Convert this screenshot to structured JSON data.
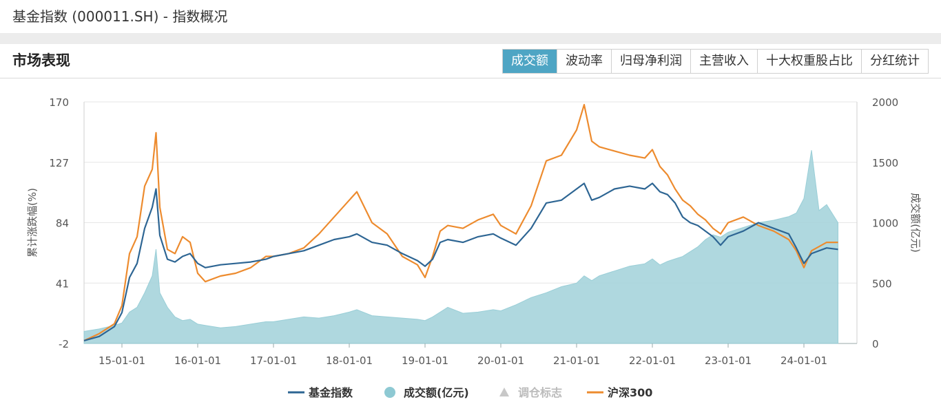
{
  "header": {
    "title": "基金指数 (000011.SH) - 指数概况"
  },
  "section": {
    "title": "市场表现",
    "tabs": [
      {
        "label": "成交额",
        "active": true
      },
      {
        "label": "波动率",
        "active": false
      },
      {
        "label": "归母净利润",
        "active": false
      },
      {
        "label": "主营收入",
        "active": false
      },
      {
        "label": "十大权重股占比",
        "active": false
      },
      {
        "label": "分红统计",
        "active": false
      }
    ]
  },
  "colors": {
    "fund": "#2d6593",
    "hs300": "#ed8b2e",
    "volume": "#a7d4dc",
    "volume_edge": "#8ec9d3",
    "marker": "#c8c8c8",
    "accent": "#4ea5c4"
  },
  "chart_data": {
    "type": "line",
    "ylabel_left": "累计涨跌幅(%)",
    "ylabel_right": "成交额(亿元)",
    "y_left_ticks": [
      -2,
      41,
      84,
      127,
      170
    ],
    "y_left_range": [
      -2,
      170
    ],
    "y_right_ticks": [
      0,
      500,
      1000,
      1500,
      2000
    ],
    "y_right_range": [
      0,
      2000
    ],
    "x_range": [
      2014.5,
      2024.7
    ],
    "x_ticks": [
      {
        "x": 2015,
        "label": "15-01-01"
      },
      {
        "x": 2016,
        "label": "16-01-01"
      },
      {
        "x": 2017,
        "label": "17-01-01"
      },
      {
        "x": 2018,
        "label": "18-01-01"
      },
      {
        "x": 2019,
        "label": "19-01-01"
      },
      {
        "x": 2020,
        "label": "20-01-01"
      },
      {
        "x": 2021,
        "label": "21-01-01"
      },
      {
        "x": 2022,
        "label": "22-01-01"
      },
      {
        "x": 2023,
        "label": "23-01-01"
      },
      {
        "x": 2024,
        "label": "24-01-01"
      }
    ],
    "legend": [
      {
        "name": "基金指数",
        "kind": "line",
        "color": "#2d6593",
        "enabled": true
      },
      {
        "name": "成交额(亿元)",
        "kind": "dot",
        "color": "#8ec9d3",
        "enabled": true
      },
      {
        "name": "调仓标志",
        "kind": "triangle",
        "color": "#c8c8c8",
        "enabled": false
      },
      {
        "name": "沪深300",
        "kind": "line",
        "color": "#ed8b2e",
        "enabled": true
      }
    ],
    "series": [
      {
        "name": "基金指数",
        "axis": "left",
        "points": [
          [
            2014.5,
            0
          ],
          [
            2014.7,
            3
          ],
          [
            2014.9,
            10
          ],
          [
            2015.0,
            20
          ],
          [
            2015.1,
            45
          ],
          [
            2015.2,
            55
          ],
          [
            2015.3,
            80
          ],
          [
            2015.4,
            95
          ],
          [
            2015.45,
            108
          ],
          [
            2015.5,
            75
          ],
          [
            2015.6,
            58
          ],
          [
            2015.7,
            56
          ],
          [
            2015.8,
            60
          ],
          [
            2015.9,
            62
          ],
          [
            2016.0,
            55
          ],
          [
            2016.1,
            52
          ],
          [
            2016.3,
            54
          ],
          [
            2016.5,
            55
          ],
          [
            2016.7,
            56
          ],
          [
            2016.9,
            58
          ],
          [
            2017.0,
            60
          ],
          [
            2017.2,
            62
          ],
          [
            2017.4,
            64
          ],
          [
            2017.6,
            68
          ],
          [
            2017.8,
            72
          ],
          [
            2018.0,
            74
          ],
          [
            2018.1,
            76
          ],
          [
            2018.3,
            70
          ],
          [
            2018.5,
            68
          ],
          [
            2018.7,
            62
          ],
          [
            2018.9,
            57
          ],
          [
            2019.0,
            53
          ],
          [
            2019.1,
            58
          ],
          [
            2019.2,
            70
          ],
          [
            2019.3,
            72
          ],
          [
            2019.5,
            70
          ],
          [
            2019.7,
            74
          ],
          [
            2019.9,
            76
          ],
          [
            2020.0,
            73
          ],
          [
            2020.2,
            68
          ],
          [
            2020.4,
            80
          ],
          [
            2020.6,
            98
          ],
          [
            2020.8,
            100
          ],
          [
            2021.0,
            108
          ],
          [
            2021.1,
            112
          ],
          [
            2021.2,
            100
          ],
          [
            2021.3,
            102
          ],
          [
            2021.5,
            108
          ],
          [
            2021.7,
            110
          ],
          [
            2021.9,
            108
          ],
          [
            2022.0,
            112
          ],
          [
            2022.1,
            106
          ],
          [
            2022.2,
            104
          ],
          [
            2022.3,
            98
          ],
          [
            2022.4,
            88
          ],
          [
            2022.5,
            84
          ],
          [
            2022.6,
            82
          ],
          [
            2022.7,
            78
          ],
          [
            2022.8,
            74
          ],
          [
            2022.9,
            68
          ],
          [
            2023.0,
            74
          ],
          [
            2023.2,
            78
          ],
          [
            2023.4,
            84
          ],
          [
            2023.6,
            80
          ],
          [
            2023.8,
            76
          ],
          [
            2023.9,
            66
          ],
          [
            2024.0,
            55
          ],
          [
            2024.1,
            62
          ],
          [
            2024.3,
            66
          ],
          [
            2024.45,
            65
          ]
        ]
      },
      {
        "name": "沪深300",
        "axis": "left",
        "points": [
          [
            2014.5,
            0
          ],
          [
            2014.7,
            5
          ],
          [
            2014.9,
            12
          ],
          [
            2015.0,
            25
          ],
          [
            2015.1,
            62
          ],
          [
            2015.2,
            74
          ],
          [
            2015.3,
            110
          ],
          [
            2015.4,
            122
          ],
          [
            2015.45,
            148
          ],
          [
            2015.5,
            95
          ],
          [
            2015.6,
            65
          ],
          [
            2015.7,
            62
          ],
          [
            2015.8,
            74
          ],
          [
            2015.9,
            70
          ],
          [
            2016.0,
            48
          ],
          [
            2016.1,
            42
          ],
          [
            2016.3,
            46
          ],
          [
            2016.5,
            48
          ],
          [
            2016.7,
            52
          ],
          [
            2016.9,
            60
          ],
          [
            2017.0,
            60
          ],
          [
            2017.2,
            62
          ],
          [
            2017.4,
            66
          ],
          [
            2017.6,
            76
          ],
          [
            2017.8,
            88
          ],
          [
            2018.0,
            100
          ],
          [
            2018.1,
            106
          ],
          [
            2018.3,
            84
          ],
          [
            2018.5,
            76
          ],
          [
            2018.7,
            60
          ],
          [
            2018.9,
            54
          ],
          [
            2019.0,
            45
          ],
          [
            2019.1,
            60
          ],
          [
            2019.2,
            78
          ],
          [
            2019.3,
            82
          ],
          [
            2019.5,
            80
          ],
          [
            2019.7,
            86
          ],
          [
            2019.9,
            90
          ],
          [
            2020.0,
            82
          ],
          [
            2020.2,
            76
          ],
          [
            2020.4,
            96
          ],
          [
            2020.6,
            128
          ],
          [
            2020.8,
            132
          ],
          [
            2021.0,
            150
          ],
          [
            2021.1,
            168
          ],
          [
            2021.2,
            142
          ],
          [
            2021.3,
            138
          ],
          [
            2021.5,
            135
          ],
          [
            2021.7,
            132
          ],
          [
            2021.9,
            130
          ],
          [
            2022.0,
            136
          ],
          [
            2022.1,
            124
          ],
          [
            2022.2,
            118
          ],
          [
            2022.3,
            108
          ],
          [
            2022.4,
            100
          ],
          [
            2022.5,
            96
          ],
          [
            2022.6,
            90
          ],
          [
            2022.7,
            86
          ],
          [
            2022.8,
            80
          ],
          [
            2022.9,
            76
          ],
          [
            2023.0,
            84
          ],
          [
            2023.2,
            88
          ],
          [
            2023.4,
            82
          ],
          [
            2023.6,
            78
          ],
          [
            2023.8,
            72
          ],
          [
            2023.9,
            64
          ],
          [
            2024.0,
            52
          ],
          [
            2024.1,
            64
          ],
          [
            2024.3,
            70
          ],
          [
            2024.45,
            70
          ]
        ]
      },
      {
        "name": "成交额(亿元)",
        "axis": "right",
        "type": "area",
        "points": [
          [
            2014.5,
            100
          ],
          [
            2014.7,
            120
          ],
          [
            2014.9,
            150
          ],
          [
            2015.0,
            170
          ],
          [
            2015.1,
            260
          ],
          [
            2015.2,
            300
          ],
          [
            2015.3,
            420
          ],
          [
            2015.4,
            560
          ],
          [
            2015.45,
            780
          ],
          [
            2015.5,
            420
          ],
          [
            2015.6,
            300
          ],
          [
            2015.7,
            220
          ],
          [
            2015.8,
            190
          ],
          [
            2015.9,
            200
          ],
          [
            2016.0,
            160
          ],
          [
            2016.1,
            150
          ],
          [
            2016.3,
            130
          ],
          [
            2016.5,
            140
          ],
          [
            2016.7,
            160
          ],
          [
            2016.9,
            180
          ],
          [
            2017.0,
            180
          ],
          [
            2017.2,
            200
          ],
          [
            2017.4,
            220
          ],
          [
            2017.6,
            210
          ],
          [
            2017.8,
            230
          ],
          [
            2018.0,
            260
          ],
          [
            2018.1,
            280
          ],
          [
            2018.3,
            230
          ],
          [
            2018.5,
            220
          ],
          [
            2018.7,
            210
          ],
          [
            2018.9,
            200
          ],
          [
            2019.0,
            190
          ],
          [
            2019.1,
            220
          ],
          [
            2019.2,
            260
          ],
          [
            2019.3,
            300
          ],
          [
            2019.5,
            250
          ],
          [
            2019.7,
            260
          ],
          [
            2019.9,
            280
          ],
          [
            2020.0,
            270
          ],
          [
            2020.2,
            320
          ],
          [
            2020.4,
            380
          ],
          [
            2020.6,
            420
          ],
          [
            2020.8,
            470
          ],
          [
            2021.0,
            500
          ],
          [
            2021.1,
            560
          ],
          [
            2021.2,
            520
          ],
          [
            2021.3,
            560
          ],
          [
            2021.5,
            600
          ],
          [
            2021.7,
            640
          ],
          [
            2021.9,
            660
          ],
          [
            2022.0,
            700
          ],
          [
            2022.1,
            650
          ],
          [
            2022.2,
            680
          ],
          [
            2022.3,
            700
          ],
          [
            2022.4,
            720
          ],
          [
            2022.5,
            760
          ],
          [
            2022.6,
            800
          ],
          [
            2022.7,
            860
          ],
          [
            2022.8,
            900
          ],
          [
            2022.9,
            880
          ],
          [
            2023.0,
            920
          ],
          [
            2023.2,
            960
          ],
          [
            2023.4,
            1000
          ],
          [
            2023.6,
            1020
          ],
          [
            2023.8,
            1050
          ],
          [
            2023.9,
            1080
          ],
          [
            2024.0,
            1200
          ],
          [
            2024.1,
            1600
          ],
          [
            2024.2,
            1100
          ],
          [
            2024.3,
            1150
          ],
          [
            2024.45,
            1000
          ]
        ]
      }
    ]
  }
}
